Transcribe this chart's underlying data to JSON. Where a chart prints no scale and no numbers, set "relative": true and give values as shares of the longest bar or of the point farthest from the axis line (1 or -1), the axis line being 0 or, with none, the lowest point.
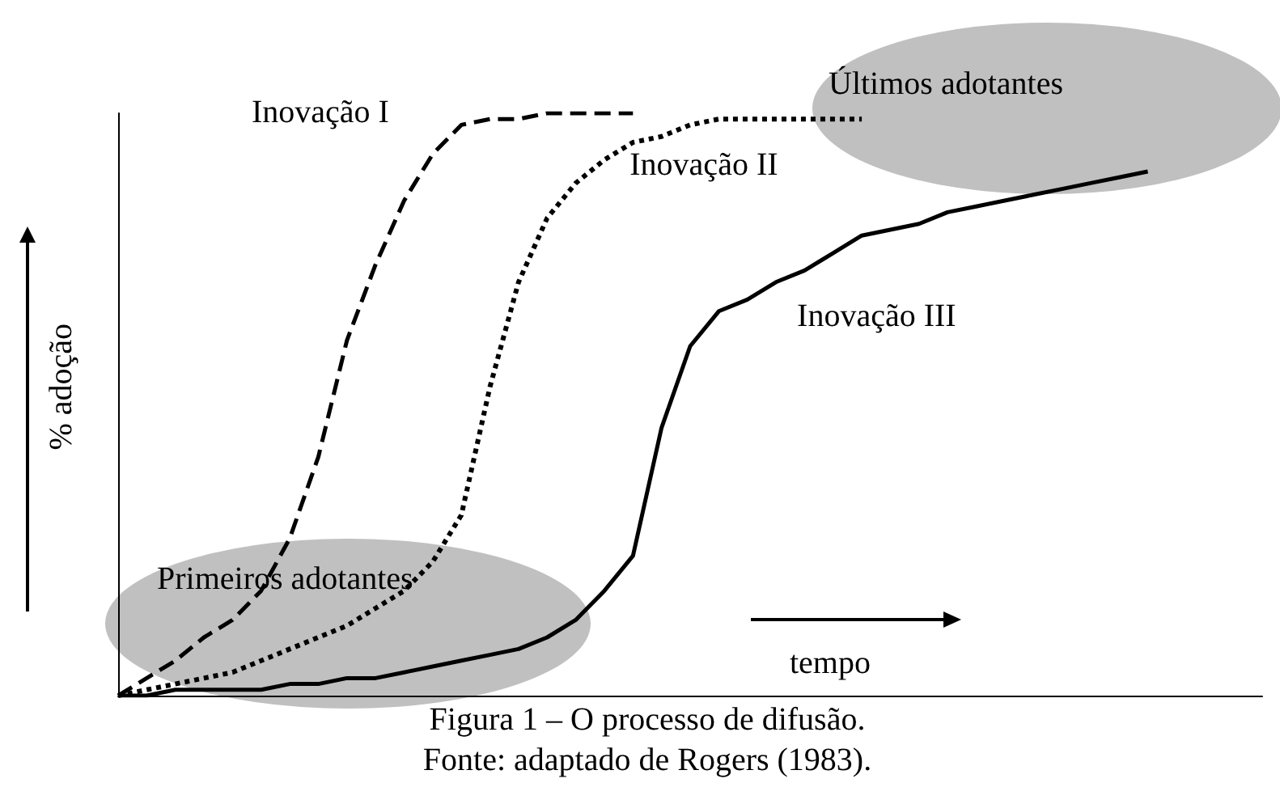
{
  "chart_data": {
    "type": "line",
    "relative": true,
    "xlabel": "tempo",
    "ylabel": "% adoção",
    "grid": false,
    "legend": false,
    "marker": "none",
    "annotations": [
      "Primeiros adotantes",
      "Últimos adotantes",
      "Figura 1 – O processo de difusão.",
      "Fonte: adaptado de Rogers (1983)."
    ],
    "categories": [
      null,
      null,
      null,
      null,
      null,
      null,
      null,
      null,
      null,
      null,
      null,
      null,
      null,
      null,
      null,
      null,
      null,
      null,
      null,
      null,
      null,
      null,
      null,
      null,
      null,
      null,
      null,
      null,
      null,
      null,
      null,
      null,
      null,
      null,
      null,
      null,
      null,
      null,
      null,
      null,
      null
    ],
    "series": [
      {
        "name": "Inovação I",
        "color": "#000000",
        "line_style": "dashed",
        "values": [
          0,
          0.03,
          0.06,
          0.1,
          0.13,
          0.18,
          0.27,
          0.41,
          0.61,
          0.74,
          0.85,
          0.93,
          0.98,
          0.99,
          0.99,
          1,
          1,
          1,
          1,
          null,
          null,
          null,
          null,
          null,
          null,
          null,
          null,
          null,
          null,
          null,
          null,
          null,
          null,
          null,
          null,
          null,
          null,
          null,
          null,
          null,
          null
        ]
      },
      {
        "name": "Inovação II",
        "color": "#000000",
        "line_style": "dotted",
        "values": [
          0,
          0.01,
          0.02,
          0.03,
          0.04,
          0.06,
          0.08,
          0.1,
          0.12,
          0.15,
          0.18,
          0.23,
          0.31,
          0.53,
          0.71,
          0.82,
          0.88,
          0.92,
          0.95,
          0.96,
          0.98,
          0.99,
          0.99,
          0.99,
          0.99,
          0.99,
          0.99,
          null,
          null,
          null,
          null,
          null,
          null,
          null,
          null,
          null,
          null,
          null,
          null,
          null,
          null
        ]
      },
      {
        "name": "Inovação III",
        "color": "#000000",
        "line_style": "solid",
        "values": [
          0,
          0,
          0.01,
          0.01,
          0.01,
          0.01,
          0.02,
          0.02,
          0.03,
          0.03,
          0.04,
          0.05,
          0.06,
          0.07,
          0.08,
          0.1,
          0.13,
          0.18,
          0.24,
          0.46,
          0.6,
          0.66,
          0.68,
          0.71,
          0.73,
          0.76,
          0.79,
          0.8,
          0.81,
          0.83,
          0.84,
          0.85,
          0.86,
          0.87,
          0.88,
          0.89,
          0.9,
          null,
          null,
          null,
          null
        ]
      }
    ]
  }
}
